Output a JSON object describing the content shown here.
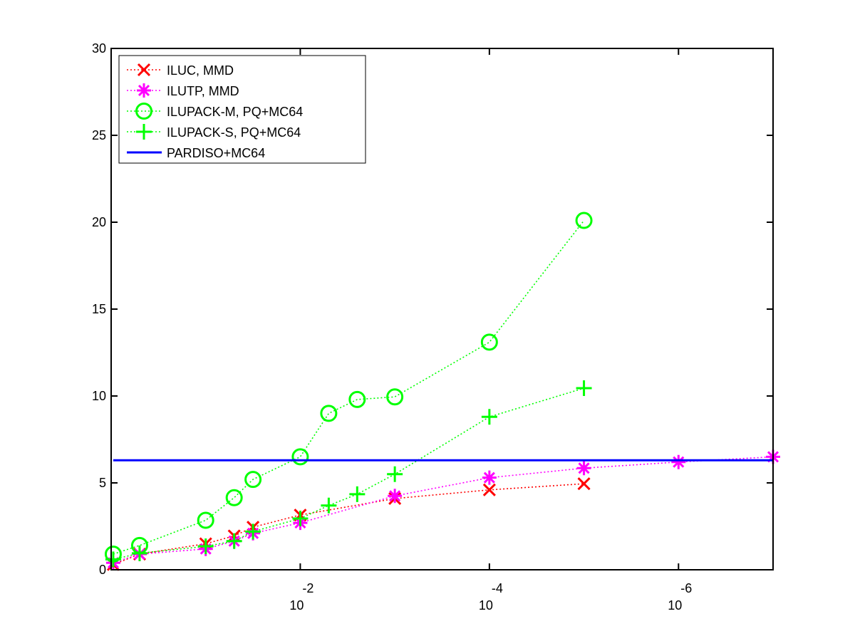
{
  "chart_data": {
    "type": "line",
    "title": "",
    "xlabel": "",
    "ylabel": "",
    "x_scale": "log10-reversed",
    "xlim": [
      1.0,
      1e-07
    ],
    "ylim": [
      0,
      30
    ],
    "yticks": [
      0,
      5,
      10,
      15,
      20,
      25,
      30
    ],
    "ytick_labels": [
      "0",
      "5",
      "10",
      "15",
      "20",
      "25",
      "30"
    ],
    "xticks": [
      0.01,
      0.0001,
      1e-06
    ],
    "xtick_labels": [
      {
        "base": "10",
        "exp": "-2"
      },
      {
        "base": "10",
        "exp": "-4"
      },
      {
        "base": "10",
        "exp": "-6"
      }
    ],
    "grid": false,
    "legend_position": "top-left",
    "series": [
      {
        "name": "ILUC, MMD",
        "color": "#ff0000",
        "marker": "x",
        "line_style": "dotted",
        "points": [
          [
            0.95,
            0.3
          ],
          [
            0.5,
            0.9
          ],
          [
            0.1,
            1.5
          ],
          [
            0.05,
            1.95
          ],
          [
            0.0316,
            2.45
          ],
          [
            0.01,
            3.15
          ],
          [
            0.001,
            4.1
          ],
          [
            0.0001,
            4.6
          ],
          [
            1e-05,
            4.95
          ]
        ]
      },
      {
        "name": "ILUTP, MMD",
        "color": "#ff00ff",
        "marker": "asterisk",
        "line_style": "dotted",
        "points": [
          [
            0.95,
            0.4
          ],
          [
            0.5,
            0.9
          ],
          [
            0.1,
            1.2
          ],
          [
            0.05,
            1.65
          ],
          [
            0.0316,
            2.1
          ],
          [
            0.01,
            2.7
          ],
          [
            0.001,
            4.25
          ],
          [
            0.0001,
            5.3
          ],
          [
            1e-05,
            5.85
          ],
          [
            1e-06,
            6.2
          ],
          [
            1e-07,
            6.5
          ]
        ]
      },
      {
        "name": "ILUPACK-M, PQ+MC64",
        "color": "#00ff00",
        "marker": "circle",
        "line_style": "dotted",
        "points": [
          [
            0.95,
            0.9
          ],
          [
            0.5,
            1.4
          ],
          [
            0.1,
            2.85
          ],
          [
            0.05,
            4.15
          ],
          [
            0.0316,
            5.2
          ],
          [
            0.01,
            6.5
          ],
          [
            0.005,
            9.0
          ],
          [
            0.0025,
            9.8
          ],
          [
            0.001,
            9.95
          ],
          [
            0.0001,
            13.1
          ],
          [
            1e-05,
            20.1
          ]
        ]
      },
      {
        "name": "ILUPACK-S, PQ+MC64",
        "color": "#00ff00",
        "marker": "plus",
        "line_style": "dotted",
        "points": [
          [
            0.95,
            0.6
          ],
          [
            0.5,
            0.95
          ],
          [
            0.1,
            1.35
          ],
          [
            0.05,
            1.65
          ],
          [
            0.0316,
            2.2
          ],
          [
            0.01,
            2.95
          ],
          [
            0.005,
            3.7
          ],
          [
            0.0025,
            4.35
          ],
          [
            0.001,
            5.5
          ],
          [
            0.0001,
            8.8
          ],
          [
            1e-05,
            10.45
          ]
        ]
      },
      {
        "name": "PARDISO+MC64",
        "color": "#0000ff",
        "marker": "none",
        "line_style": "solid",
        "points": [
          [
            0.95,
            6.3
          ],
          [
            1e-07,
            6.3
          ]
        ]
      }
    ]
  }
}
